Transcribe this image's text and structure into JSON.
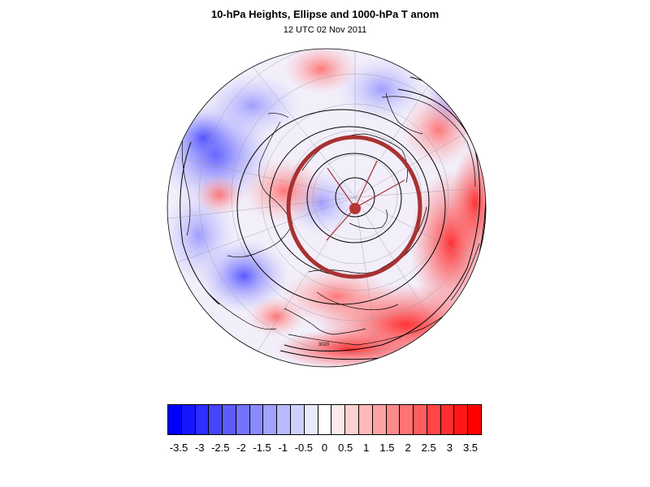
{
  "title": "10-hPa Heights, Ellipse and 1000-hPa T anom",
  "subtitle": "12 UTC 02 Nov 2011",
  "map": {
    "projection": "polar stereographic (north pole)",
    "contour_label": "3020",
    "features": [
      "land-coastlines",
      "lat-lon-graticule",
      "height-contours",
      "fitted-ellipse",
      "ellipse-center-marker"
    ]
  },
  "colors": {
    "ellipse": "#a83232",
    "ellipse_center": "#b83434",
    "negative_max": "#0000ff",
    "positive_max": "#ff0000",
    "neutral": "#ffffff"
  },
  "colorbar": {
    "labels": [
      "-3.5",
      "-3",
      "-2.5",
      "-2",
      "-1.5",
      "-1",
      "-0.5",
      "0",
      "0.5",
      "1",
      "1.5",
      "2",
      "2.5",
      "3",
      "3.5"
    ],
    "colors": [
      "#0000ff",
      "#1717ff",
      "#2e2eff",
      "#4545ff",
      "#5c5cff",
      "#7373ff",
      "#8a8aff",
      "#a2a2ff",
      "#b9b9ff",
      "#d0d0ff",
      "#e8e8ff",
      "#ffffff",
      "#ffe8e8",
      "#ffd0d0",
      "#ffb9b9",
      "#ffa2a2",
      "#ff8a8a",
      "#ff7373",
      "#ff5c5c",
      "#ff4545",
      "#ff2e2e",
      "#ff1717",
      "#ff0000"
    ]
  }
}
